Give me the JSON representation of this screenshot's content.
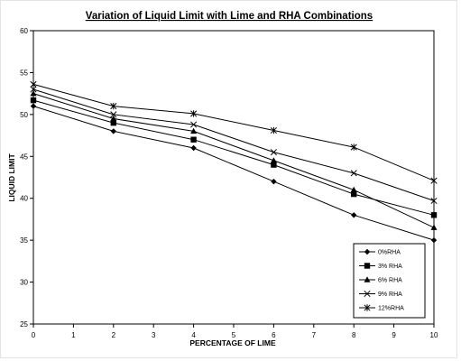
{
  "chart_data": {
    "type": "line",
    "title": "Variation of Liquid Limit with Lime and RHA Combinations",
    "xlabel": "PERCENTAGE OF LIME",
    "ylabel": "LIQUID LIMIT",
    "xlim": [
      0,
      10
    ],
    "ylim": [
      25,
      60
    ],
    "x_ticks": [
      "0",
      "1",
      "2",
      "3",
      "4",
      "5",
      "6",
      "7",
      "8",
      "9",
      "10"
    ],
    "y_ticks": [
      "25",
      "30",
      "35",
      "40",
      "45",
      "50",
      "55",
      "60"
    ],
    "grid": false,
    "legend_position": "bottom-right",
    "x": [
      0,
      2,
      4,
      6,
      8,
      10
    ],
    "series": [
      {
        "name": "0%RHA",
        "marker": "diamond",
        "values": [
          51.0,
          48.0,
          46.0,
          42.0,
          38.0,
          35.0
        ]
      },
      {
        "name": "3% RHA",
        "marker": "square",
        "values": [
          51.7,
          49.0,
          47.0,
          44.0,
          40.5,
          38.0
        ]
      },
      {
        "name": "6% RHA",
        "marker": "triangle",
        "values": [
          52.5,
          49.5,
          48.0,
          44.5,
          41.0,
          36.5
        ]
      },
      {
        "name": "9% RHA",
        "marker": "x",
        "values": [
          53.0,
          50.0,
          48.8,
          45.5,
          43.0,
          39.7
        ]
      },
      {
        "name": "12%RHA",
        "marker": "star",
        "values": [
          53.6,
          51.0,
          50.1,
          48.1,
          46.1,
          42.1
        ]
      }
    ]
  }
}
